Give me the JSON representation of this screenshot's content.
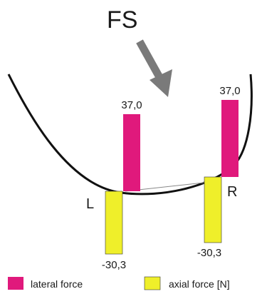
{
  "diagram": {
    "title": "FS",
    "left_label": "L",
    "right_label": "R",
    "left_lateral_value": "37,0",
    "right_lateral_value": "37,0",
    "left_axial_value": "-30,3",
    "right_axial_value": "-30,3",
    "colors": {
      "lateral": "#e0197c",
      "axial": "#efef2a",
      "arrow": "#7a7a7a",
      "curve": "#111111",
      "text": "#1a1a1a"
    }
  },
  "legend": {
    "lateral_label": "lateral force",
    "axial_label": "axial force [N]"
  }
}
